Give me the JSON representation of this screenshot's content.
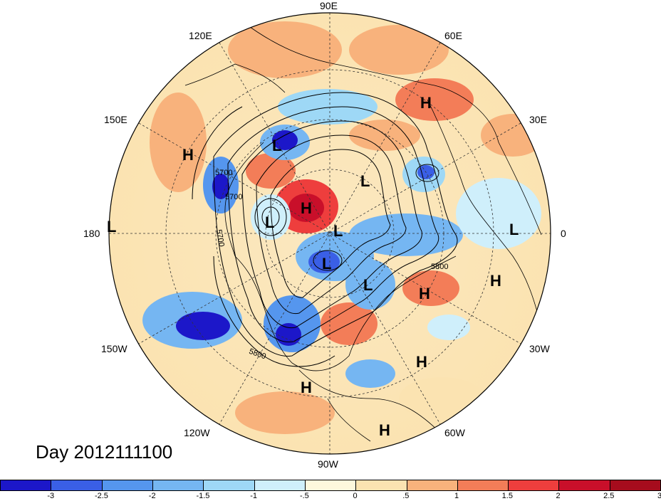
{
  "title": "Day 2012111100",
  "lon_labels": {
    "e90": "90E",
    "e120": "120E",
    "e60": "60E",
    "e150": "150E",
    "e30": "30E",
    "w180": "180",
    "e0": "0",
    "w150": "150W",
    "w30": "30W",
    "w120": "120W",
    "w60": "60W",
    "w90": "90W"
  },
  "contour_labels": [
    "5700",
    "5700",
    "5700",
    "5800",
    "5800"
  ],
  "pressure_centers": [
    {
      "type": "H"
    },
    {
      "type": "H"
    },
    {
      "type": "H"
    },
    {
      "type": "H"
    },
    {
      "type": "H"
    },
    {
      "type": "H"
    },
    {
      "type": "H"
    },
    {
      "type": "H"
    },
    {
      "type": "L"
    },
    {
      "type": "L"
    },
    {
      "type": "L"
    },
    {
      "type": "L"
    },
    {
      "type": "L"
    },
    {
      "type": "L"
    },
    {
      "type": "L"
    }
  ],
  "colorbar": {
    "colors": [
      "#1c17c9",
      "#3a5fe6",
      "#5596ee",
      "#75b6f2",
      "#9ed8f6",
      "#cfeffb",
      "#fdf8dd",
      "#fbe3b1",
      "#f8b27c",
      "#f37d58",
      "#ee3e3d",
      "#c90f2a",
      "#a60c1d"
    ],
    "labels": [
      "-3",
      "-2.5",
      "-2",
      "-1.5",
      "-1",
      "-.5",
      "0",
      ".5",
      "1",
      "1.5",
      "2",
      "2.5",
      "3"
    ]
  }
}
